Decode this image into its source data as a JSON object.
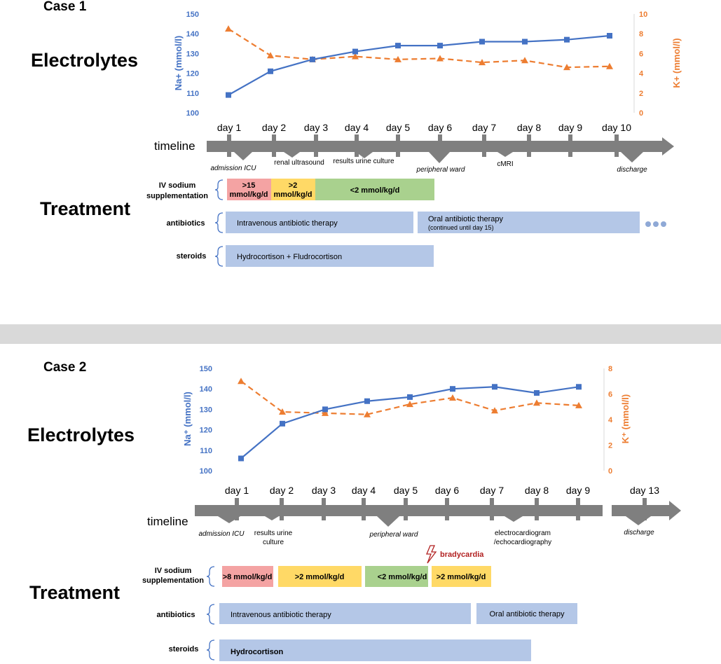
{
  "colors": {
    "sodium": "#4472c4",
    "potassium": "#ed7d31",
    "timeline": "#7f7f7f",
    "red": "#f4a3a3",
    "yellow": "#ffd966",
    "green": "#a9d18e",
    "blue": "#b4c7e7",
    "separator": "#d9d9d9",
    "bradycardia": "#b22222"
  },
  "case1": {
    "title": "Case 1",
    "electrolytes_label": "Electrolytes",
    "treatment_label": "Treatment",
    "timeline_label": "timeline",
    "na_axis_label": "Na+ (mmol/l)",
    "k_axis_label": "K+ (mmol/l)",
    "na_ticks": [
      "150",
      "140",
      "130",
      "120",
      "110",
      "100"
    ],
    "k_ticks": [
      "10",
      "8",
      "6",
      "4",
      "2",
      "0"
    ],
    "days": [
      "day 1",
      "day 2",
      "day 3",
      "day 4",
      "day 5",
      "day 6",
      "day 7",
      "day 8",
      "day 9",
      "day 10"
    ],
    "events": {
      "admission": "admission ICU",
      "renal": "renal ultrasound",
      "urine": "results urine culture",
      "ward": "peripheral ward",
      "cmri": "cMRI",
      "discharge": "discharge"
    },
    "treatment": {
      "iv_label_1": "IV sodium",
      "iv_label_2": "supplementation",
      "iv_bars": [
        {
          "line1": ">15",
          "line2": "mmol/kg/d"
        },
        {
          "line1": ">2",
          "line2": "mmol/kg/d"
        },
        {
          "line1": "<2 mmol/kg/d"
        }
      ],
      "antibiotics_label": "antibiotics",
      "iv_antibiotic": "Intravenous antibiotic therapy",
      "oral_antibiotic": "Oral antibiotic therapy",
      "oral_note": "(continued until day 15)",
      "steroids_label": "steroids",
      "steroids": "Hydrocortison + Fludrocortison"
    }
  },
  "case2": {
    "title": "Case 2",
    "electrolytes_label": "Electrolytes",
    "treatment_label": "Treatment",
    "timeline_label": "timeline",
    "na_axis_label": "Na⁺ (mmol/l)",
    "k_axis_label": "K⁺ (mmol/l)",
    "na_ticks": [
      "150",
      "140",
      "130",
      "120",
      "110",
      "100"
    ],
    "k_ticks": [
      "8",
      "6",
      "4",
      "2",
      "0"
    ],
    "days": [
      "day 1",
      "day 2",
      "day 3",
      "day 4",
      "day 5",
      "day 6",
      "day 7",
      "day 8",
      "day 9",
      "day 13"
    ],
    "events": {
      "admission": "admission ICU",
      "urine_1": "results urine",
      "urine_2": "culture",
      "ward": "peripheral ward",
      "ecg_1": "electrocardiogram",
      "ecg_2": "/echocardiography",
      "discharge": "discharge"
    },
    "bradycardia": "bradycardia",
    "treatment": {
      "iv_label_1": "IV sodium",
      "iv_label_2": "supplementation",
      "iv_bars": [
        ">8 mmol/kg/d",
        ">2 mmol/kg/d",
        "<2 mmol/kg/d",
        ">2 mmol/kg/d"
      ],
      "antibiotics_label": "antibiotics",
      "iv_antibiotic": "Intravenous antibiotic therapy",
      "oral_antibiotic": "Oral antibiotic therapy",
      "steroids_label": "steroids",
      "steroids": "Hydrocortison"
    }
  },
  "chart_data": [
    {
      "type": "line",
      "title": "Case 1",
      "categories": [
        "day 1",
        "day 2",
        "day 3",
        "day 4",
        "day 5",
        "day 6",
        "day 7",
        "day 8",
        "day 9",
        "day 10"
      ],
      "series": [
        {
          "name": "Na+ (mmol/l)",
          "axis": "left",
          "values": [
            109,
            121,
            127,
            131,
            134,
            134,
            136,
            136,
            137,
            139
          ]
        },
        {
          "name": "K+ (mmol/l)",
          "axis": "right",
          "values": [
            8.5,
            5.8,
            5.4,
            5.7,
            5.4,
            5.5,
            5.1,
            5.3,
            4.6,
            4.7
          ]
        }
      ],
      "ylim_left": [
        100,
        150
      ],
      "ylim_right": [
        0,
        10
      ],
      "ylabel_left": "Na+ (mmol/l)",
      "ylabel_right": "K+ (mmol/l)"
    },
    {
      "type": "line",
      "title": "Case 2",
      "categories": [
        "day 1",
        "day 2",
        "day 3",
        "day 4",
        "day 5",
        "day 6",
        "day 7",
        "day 8",
        "day 9"
      ],
      "series": [
        {
          "name": "Na+ (mmol/l)",
          "axis": "left",
          "values": [
            106,
            123,
            130,
            134,
            136,
            140,
            141,
            138,
            141
          ]
        },
        {
          "name": "K+ (mmol/l)",
          "axis": "right",
          "values": [
            7.0,
            4.6,
            4.5,
            4.4,
            5.2,
            5.7,
            4.7,
            5.3,
            5.1
          ]
        }
      ],
      "ylim_left": [
        100,
        150
      ],
      "ylim_right": [
        0,
        8
      ],
      "ylabel_left": "Na⁺ (mmol/l)",
      "ylabel_right": "K⁺ (mmol/l)"
    }
  ]
}
